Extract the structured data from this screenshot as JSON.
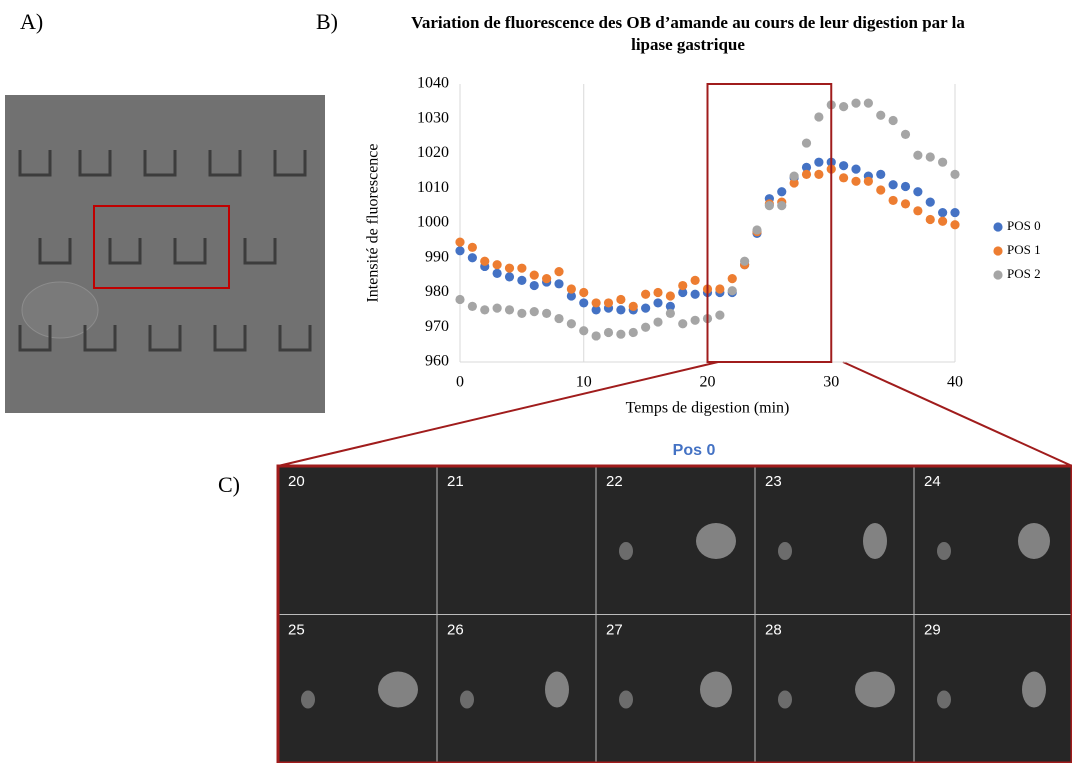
{
  "chart_data": {
    "type": "scatter",
    "title": "Variation de fluorescence des OB d’amande au cours de leur digestion par la lipase gastrique",
    "x_label": "Temps de digestion (min)",
    "y_label": "Intensité de fluorescence",
    "x": [
      0,
      1,
      2,
      3,
      4,
      5,
      6,
      7,
      8,
      9,
      10,
      11,
      12,
      13,
      14,
      15,
      16,
      17,
      18,
      19,
      20,
      21,
      22,
      23,
      24,
      25,
      26,
      27,
      28,
      29,
      30,
      31,
      32,
      33,
      34,
      35,
      36,
      37,
      38,
      39,
      40
    ],
    "series": [
      {
        "name": "POS 0",
        "color": "#4472c4",
        "values": [
          992,
          990,
          987.5,
          985.5,
          984.5,
          983.5,
          982,
          983,
          982.5,
          979,
          977,
          975,
          975.5,
          975,
          975,
          975.5,
          977,
          976,
          980,
          979.5,
          980,
          980,
          980,
          988,
          997,
          1007,
          1009,
          1013,
          1016,
          1017.5,
          1017.5,
          1016.5,
          1015.5,
          1013.5,
          1014,
          1011,
          1010.5,
          1009,
          1006,
          1003,
          1003
        ]
      },
      {
        "name": "POS 1",
        "color": "#ed7d31",
        "values": [
          994.5,
          993,
          989,
          988,
          987,
          987,
          985,
          984,
          986,
          981,
          980,
          977,
          977,
          978,
          976,
          979.5,
          980,
          979,
          982,
          983.5,
          981,
          981,
          984,
          988,
          997.5,
          1005.5,
          1006,
          1011.5,
          1014,
          1014,
          1015.5,
          1013,
          1012,
          1012,
          1009.5,
          1006.5,
          1005.5,
          1003.5,
          1001,
          1000.5,
          999.5
        ]
      },
      {
        "name": "POS 2",
        "color": "#a5a5a5",
        "values": [
          978,
          976,
          975,
          975.5,
          975,
          974,
          974.5,
          974,
          972.5,
          971,
          969,
          967.5,
          968.5,
          968,
          968.5,
          970,
          971.5,
          974,
          971,
          972,
          972.5,
          973.5,
          980.5,
          989,
          998,
          1005,
          1005,
          1013.5,
          1023,
          1030.5,
          1034,
          1033.5,
          1034.5,
          1034.5,
          1031,
          1029.5,
          1025.5,
          1019.5,
          1019,
          1017.5,
          1014
        ]
      }
    ],
    "xlim": [
      0,
      40
    ],
    "xticks": [
      0,
      10,
      20,
      30,
      40
    ],
    "ylim": [
      960,
      1040
    ],
    "yticks": [
      960,
      970,
      980,
      990,
      1000,
      1010,
      1020,
      1030,
      1040
    ],
    "grid": "x",
    "legend": "right",
    "highlight": [
      20,
      30
    ]
  },
  "figure": {
    "panel_a": "A)",
    "panel_b": "B)",
    "panel_c": "C)",
    "zoom_title": "Pos 0",
    "frames": [
      "20",
      "21",
      "22",
      "23",
      "24",
      "25",
      "26",
      "27",
      "28",
      "29"
    ]
  }
}
